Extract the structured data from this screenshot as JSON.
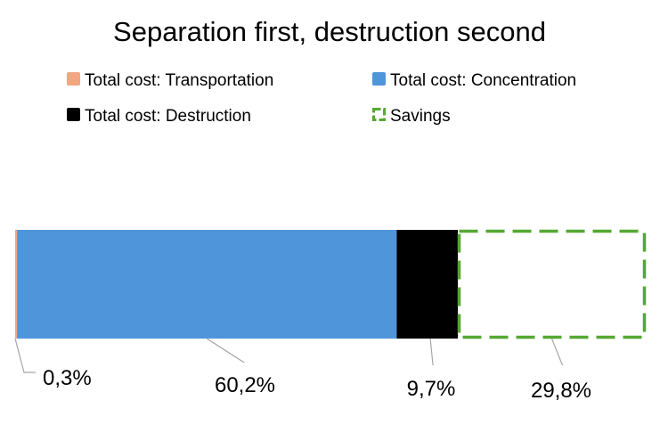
{
  "chart_data": {
    "type": "bar",
    "subtype": "stacked-horizontal-100",
    "title": "Separation first, destruction second",
    "legend_position": "top",
    "xlim": [
      0,
      100
    ],
    "grid": false,
    "series": [
      {
        "name": "Total cost: Transportation",
        "value": 0.3,
        "label": "0,3%",
        "color": "#F4A582",
        "style": "solid"
      },
      {
        "name": "Total cost: Concentration",
        "value": 60.2,
        "label": "60,2%",
        "color": "#4F95D9",
        "style": "solid"
      },
      {
        "name": "Total cost: Destruction",
        "value": 9.7,
        "label": "9,7%",
        "color": "#000000",
        "style": "solid"
      },
      {
        "name": "Savings",
        "value": 29.8,
        "label": "29,8%",
        "color": "#55A832",
        "style": "dashed-outline"
      }
    ]
  }
}
